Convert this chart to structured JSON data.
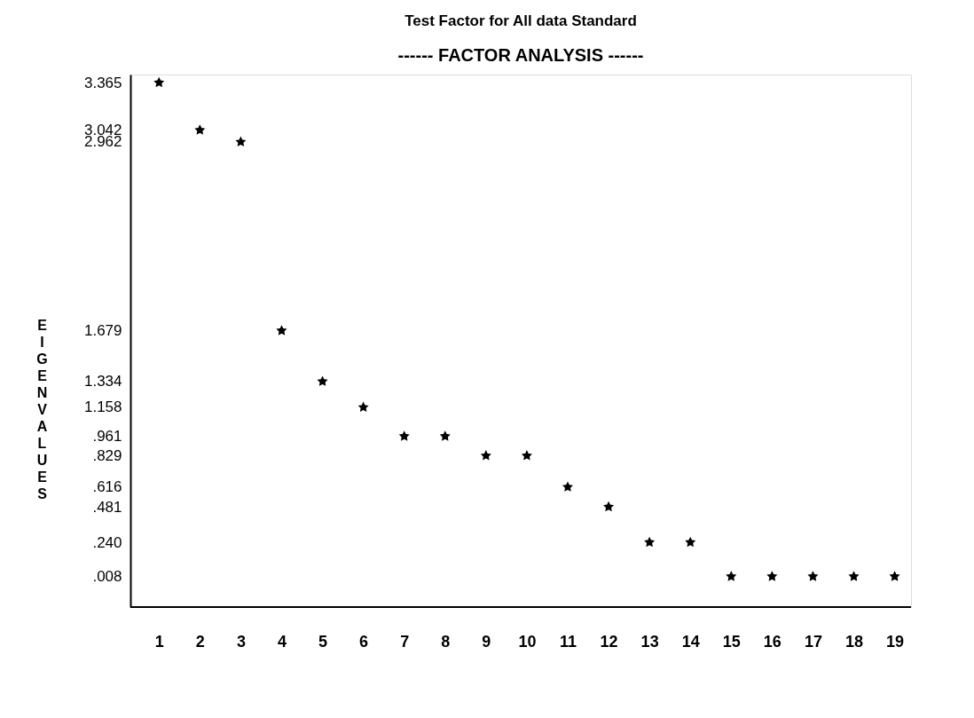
{
  "chart_data": {
    "type": "scatter",
    "title": "Test Factor for All data Standard",
    "subtitle": "------ FACTOR ANALYSIS ------",
    "ylabel": "EIGENVALUES",
    "x": [
      1,
      2,
      3,
      4,
      5,
      6,
      7,
      8,
      9,
      10,
      11,
      12,
      13,
      14,
      15,
      16,
      17,
      18,
      19
    ],
    "series": [
      {
        "color": "#000000",
        "values": [
          3.365,
          3.042,
          2.962,
          1.679,
          1.334,
          1.158,
          0.961,
          0.961,
          0.829,
          0.829,
          0.616,
          0.481,
          0.24,
          0.24,
          0.008,
          0.008,
          0.008,
          0.008,
          0.008
        ]
      }
    ],
    "xlim": [
      0.3,
      19.4
    ],
    "ylim": [
      -0.2,
      3.42
    ],
    "xticks": [
      1,
      2,
      3,
      4,
      5,
      6,
      7,
      8,
      9,
      10,
      11,
      12,
      13,
      14,
      15,
      16,
      17,
      18,
      19
    ],
    "yticks": [
      {
        "value": 3.365,
        "label": "3.365"
      },
      {
        "value": 3.042,
        "label": "3.042"
      },
      {
        "value": 2.962,
        "label": "2.962"
      },
      {
        "value": 1.679,
        "label": "1.679"
      },
      {
        "value": 1.334,
        "label": "1.334"
      },
      {
        "value": 1.158,
        "label": "1.158"
      },
      {
        "value": 0.961,
        "label": ".961"
      },
      {
        "value": 0.829,
        "label": ".829"
      },
      {
        "value": 0.616,
        "label": ".616"
      },
      {
        "value": 0.481,
        "label": ".481"
      },
      {
        "value": 0.24,
        "label": ".240"
      },
      {
        "value": 0.008,
        "label": ".008"
      }
    ],
    "marker": "star",
    "grid": false
  }
}
